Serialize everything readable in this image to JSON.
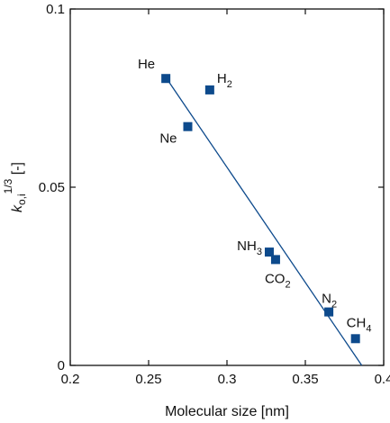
{
  "chart_data": {
    "type": "scatter",
    "title": "",
    "xlabel": "Molecular size [nm]",
    "ylabel": {
      "symbol": "k",
      "subscript": "o,i",
      "superscript": "1/3",
      "unit": " [-]"
    },
    "xlim": [
      0.2,
      0.4
    ],
    "ylim": [
      0,
      0.1
    ],
    "x_ticks": [
      "0.2",
      "0.25",
      "0.3",
      "0.35",
      "0.4"
    ],
    "y_ticks": [
      "0",
      "0.05",
      "0.1"
    ],
    "marker_color": "#0d4a8c",
    "line_color": "#0d4a8c",
    "points": [
      {
        "label": "He",
        "label_sub": "",
        "x": 0.261,
        "y": 0.0805,
        "label_pos": "upper-left"
      },
      {
        "label": "H",
        "label_sub": "2",
        "x": 0.289,
        "y": 0.0773,
        "label_pos": "upper-right"
      },
      {
        "label": "Ne",
        "label_sub": "",
        "x": 0.275,
        "y": 0.067,
        "label_pos": "lower-left"
      },
      {
        "label": "NH",
        "label_sub": "3",
        "x": 0.327,
        "y": 0.0318,
        "label_pos": "left"
      },
      {
        "label": "CO",
        "label_sub": "2",
        "x": 0.331,
        "y": 0.0297,
        "label_pos": "below"
      },
      {
        "label": "N",
        "label_sub": "2",
        "x": 0.365,
        "y": 0.015,
        "label_pos": "above"
      },
      {
        "label": "CH",
        "label_sub": "4",
        "x": 0.382,
        "y": 0.0075,
        "label_pos": "above-left"
      }
    ],
    "trendline": {
      "x": [
        0.261,
        0.386
      ],
      "y": [
        0.0808,
        0.0
      ]
    }
  }
}
